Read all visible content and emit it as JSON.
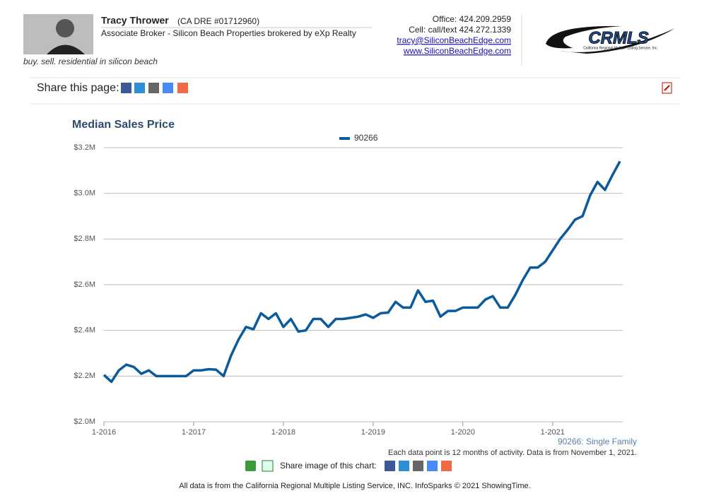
{
  "header": {
    "name": "Tracy Thrower",
    "license": "(CA DRE #01712960)",
    "role": "Associate Broker - Silicon Beach Properties brokered by eXp Realty",
    "tagline": "buy. sell. residential in silicon beach",
    "contact": [
      "Office: 424.209.2959",
      "Cell: call/text 424.272.1339"
    ],
    "links": [
      "tracy@SiliconBeachEdge.com",
      "www.SiliconBeachEdge.com"
    ],
    "logo": {
      "text": "CRMLS",
      "subtitle": "California Regional Multiple Listing Service, Inc."
    }
  },
  "share_page": {
    "label": "Share this page:"
  },
  "chart_data": {
    "type": "line",
    "title": "Median Sales Price",
    "categories": [
      "1-2016",
      null,
      null,
      null,
      null,
      null,
      null,
      null,
      null,
      null,
      null,
      null,
      "1-2017",
      null,
      null,
      null,
      null,
      null,
      null,
      null,
      null,
      null,
      null,
      null,
      "1-2018",
      null,
      null,
      null,
      null,
      null,
      null,
      null,
      null,
      null,
      null,
      null,
      "1-2019",
      null,
      null,
      null,
      null,
      null,
      null,
      null,
      null,
      null,
      null,
      null,
      "1-2020",
      null,
      null,
      null,
      null,
      null,
      null,
      null,
      null,
      null,
      null,
      null,
      "1-2021",
      null,
      null,
      null,
      null,
      null,
      null,
      null,
      null,
      null
    ],
    "series": [
      {
        "name": "90266",
        "color": "#0a5a9c",
        "values": [
          2205000,
          2175000,
          2225000,
          2250000,
          2240000,
          2210000,
          2225000,
          2200000,
          2200000,
          2200000,
          2200000,
          2200000,
          2225000,
          2225000,
          2230000,
          2228000,
          2200000,
          2290000,
          2360000,
          2415000,
          2405000,
          2475000,
          2450000,
          2475000,
          2415000,
          2450000,
          2395000,
          2400000,
          2450000,
          2450000,
          2415000,
          2450000,
          2450000,
          2455000,
          2460000,
          2470000,
          2455000,
          2475000,
          2478000,
          2525000,
          2500000,
          2500000,
          2575000,
          2525000,
          2530000,
          2460000,
          2485000,
          2485000,
          2500000,
          2500000,
          2500000,
          2535000,
          2550000,
          2500000,
          2500000,
          2555000,
          2620000,
          2675000,
          2675000,
          2700000,
          2750000,
          2800000,
          2840000,
          2885000,
          2900000,
          2990000,
          3050000,
          3015000,
          3080000,
          3140000
        ]
      }
    ],
    "ylim": [
      2000000,
      3200000
    ],
    "yticks": [
      {
        "value": 2000000,
        "label": "$2.0M"
      },
      {
        "value": 2200000,
        "label": "$2.2M"
      },
      {
        "value": 2400000,
        "label": "$2.4M"
      },
      {
        "value": 2600000,
        "label": "$2.6M"
      },
      {
        "value": 2800000,
        "label": "$2.8M"
      },
      {
        "value": 3000000,
        "label": "$3.0M"
      },
      {
        "value": 3200000,
        "label": "$3.2M"
      }
    ],
    "grid": true,
    "legend": "top",
    "footnotes": [
      "90266: Single Family",
      "Each data point is 12 months of activity. Data is from November 1, 2021."
    ]
  },
  "share_image": {
    "label": "Share image of this chart:"
  },
  "footer": "All data is from the California Regional Multiple Listing Service, INC. InfoSparks © 2021 ShowingTime."
}
